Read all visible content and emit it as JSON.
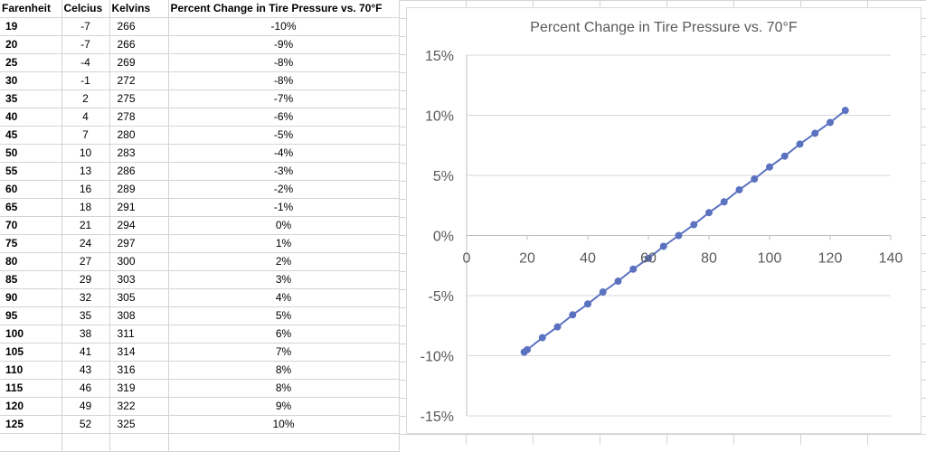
{
  "table": {
    "headers": [
      "Farenheit",
      "Celcius",
      "Kelvins",
      "Percent Change in Tire Pressure vs. 70°F"
    ],
    "rows": [
      [
        "19",
        "-7",
        "266",
        "-10%"
      ],
      [
        "20",
        "-7",
        "266",
        "-9%"
      ],
      [
        "25",
        "-4",
        "269",
        "-8%"
      ],
      [
        "30",
        "-1",
        "272",
        "-8%"
      ],
      [
        "35",
        "2",
        "275",
        "-7%"
      ],
      [
        "40",
        "4",
        "278",
        "-6%"
      ],
      [
        "45",
        "7",
        "280",
        "-5%"
      ],
      [
        "50",
        "10",
        "283",
        "-4%"
      ],
      [
        "55",
        "13",
        "286",
        "-3%"
      ],
      [
        "60",
        "16",
        "289",
        "-2%"
      ],
      [
        "65",
        "18",
        "291",
        "-1%"
      ],
      [
        "70",
        "21",
        "294",
        "0%"
      ],
      [
        "75",
        "24",
        "297",
        "1%"
      ],
      [
        "80",
        "27",
        "300",
        "2%"
      ],
      [
        "85",
        "29",
        "303",
        "3%"
      ],
      [
        "90",
        "32",
        "305",
        "4%"
      ],
      [
        "95",
        "35",
        "308",
        "5%"
      ],
      [
        "100",
        "38",
        "311",
        "6%"
      ],
      [
        "105",
        "41",
        "314",
        "7%"
      ],
      [
        "110",
        "43",
        "316",
        "8%"
      ],
      [
        "115",
        "46",
        "319",
        "8%"
      ],
      [
        "120",
        "49",
        "322",
        "9%"
      ],
      [
        "125",
        "52",
        "325",
        "10%"
      ]
    ]
  },
  "chart_data": {
    "type": "scatter",
    "title": "Percent Change in Tire Pressure vs. 70°F",
    "xlabel": "",
    "ylabel": "",
    "xlim": [
      0,
      140
    ],
    "ylim": [
      -0.15,
      0.15
    ],
    "x_ticks": [
      "0",
      "20",
      "40",
      "60",
      "80",
      "100",
      "120",
      "140"
    ],
    "y_ticks": [
      "15%",
      "10%",
      "5%",
      "0%",
      "-5%",
      "-10%",
      "-15%"
    ],
    "grid": "horizontal",
    "legend": "none",
    "colors": {
      "series": "#5b72c0",
      "grid": "#d9d9d9",
      "axis": "#bfbfbf",
      "title": "#595959",
      "ticks": "#595959"
    },
    "series": [
      {
        "x": [
          19,
          20,
          25,
          30,
          35,
          40,
          45,
          50,
          55,
          60,
          65,
          70,
          75,
          80,
          85,
          90,
          95,
          100,
          105,
          110,
          115,
          120,
          125
        ],
        "values": [
          -0.097,
          -0.095,
          -0.085,
          -0.076,
          -0.066,
          -0.057,
          -0.047,
          -0.038,
          -0.028,
          -0.019,
          -0.009,
          0.0,
          0.009,
          0.019,
          0.028,
          0.038,
          0.047,
          0.057,
          0.066,
          0.076,
          0.085,
          0.094,
          0.104
        ]
      }
    ]
  }
}
